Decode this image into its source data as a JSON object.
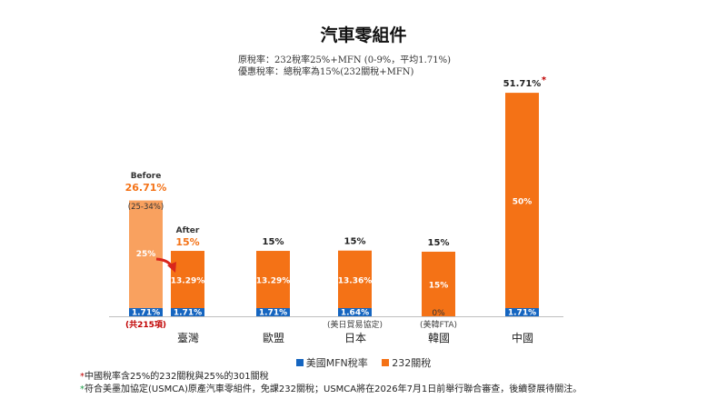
{
  "chart_data": {
    "type": "bar",
    "stacked": true,
    "title": "汽車零組件",
    "subtitle_lines": [
      "原稅率：232稅率25%+MFN (0-9%，平均1.71%)",
      "優惠稅率：總稅率為15%(232關稅+MFN)"
    ],
    "ylim": [
      0,
      52
    ],
    "legend_position": "bottom",
    "series": [
      {
        "name": "美國MFN稅率",
        "color": "#1565c0"
      },
      {
        "name": "232關稅",
        "color": "#f47216"
      }
    ],
    "bars": [
      {
        "key": "taiwan_before",
        "group": "臺灣",
        "mfn": 1.71,
        "s232": 25,
        "total": 26.71,
        "mfn_label": "1.71%",
        "s232_label": "25%",
        "total_label": "26.71%",
        "tag": "Before",
        "range_note": "(25-34%)",
        "below_note": "(共215項)",
        "light": true
      },
      {
        "key": "taiwan_after",
        "group": "臺灣",
        "mfn": 1.71,
        "s232": 13.29,
        "total": 15,
        "mfn_label": "1.71%",
        "s232_label": "13.29%",
        "total_label": "15%",
        "tag": "After"
      },
      {
        "key": "eu",
        "group": "歐盟",
        "mfn": 1.71,
        "s232": 13.29,
        "total": 15,
        "mfn_label": "1.71%",
        "s232_label": "13.29%",
        "total_label": "15%"
      },
      {
        "key": "japan",
        "group": "日本",
        "mfn": 1.64,
        "s232": 13.36,
        "total": 15,
        "mfn_label": "1.64%",
        "s232_label": "13.36%",
        "total_label": "15%",
        "below_note": "(美日貿易協定)"
      },
      {
        "key": "korea",
        "group": "韓國",
        "mfn": 0,
        "s232": 15,
        "total": 15,
        "mfn_label": "0%",
        "s232_label": "15%",
        "total_label": "15%",
        "below_note": "(美韓FTA)"
      },
      {
        "key": "china",
        "group": "中國",
        "mfn": 1.71,
        "s232": 50,
        "total": 51.71,
        "mfn_label": "1.71%",
        "s232_label": "50%",
        "total_label": "51.71%",
        "asterisk": "*"
      }
    ],
    "categories": [
      "臺灣",
      "歐盟",
      "日本",
      "韓國",
      "中國"
    ]
  },
  "colors": {
    "mfn": "#1565c0",
    "s232": "#f47216",
    "s232_light": "#f9a15f",
    "red": "#c00000",
    "arrow": "#d9261c",
    "green": "#1f9e4a"
  },
  "notes": [
    {
      "mark": "*",
      "text": "中國稅率含25%的232關稅與25%的301關稅"
    },
    {
      "mark": "*",
      "text": "符合美墨加協定(USMCA)原產汽車零組件，免課232關稅；USMCA將在2026年7月1日前舉行聯合審查，後續發展待關注。"
    }
  ]
}
